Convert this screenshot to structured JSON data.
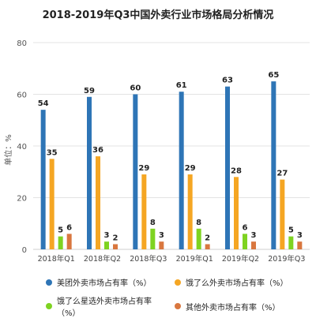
{
  "chart_data": {
    "type": "bar",
    "title": "2018-2019年Q3中国外卖行业市场格局分析情况",
    "ylabel": "单位：%",
    "xlabel": "",
    "categories": [
      "2018年Q1",
      "2018年Q2",
      "2018年Q3",
      "2019年Q1",
      "2019年Q2",
      "2019年Q3"
    ],
    "series": [
      {
        "name": "美团外卖市场占有率（%）",
        "color": "#2e75b6",
        "values": [
          54,
          59,
          60,
          61,
          63,
          65
        ]
      },
      {
        "name": "饿了么外卖市场占有率（%）",
        "color": "#f5a623",
        "values": [
          35,
          36,
          29,
          29,
          28,
          27
        ]
      },
      {
        "name": "饿了么星选外卖市场占有率（%）",
        "color": "#7ed321",
        "values": [
          5,
          3,
          8,
          8,
          6,
          5
        ]
      },
      {
        "name": "其他外卖市场占有率（%）",
        "color": "#d9773f",
        "values": [
          6,
          2,
          3,
          2,
          3,
          3
        ]
      }
    ],
    "ylim": [
      0,
      80
    ],
    "yticks": [
      0,
      20,
      40,
      60,
      80
    ],
    "grid": true,
    "legend_position": "bottom",
    "data_labels": true
  }
}
